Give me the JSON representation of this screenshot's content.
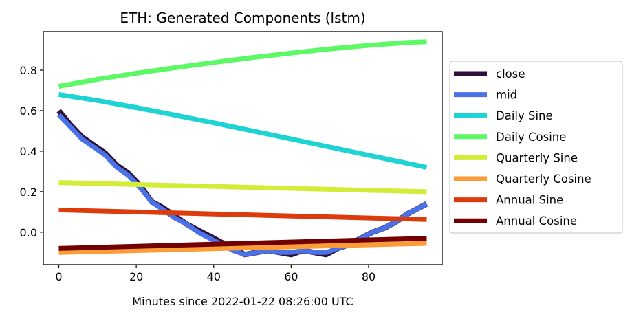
{
  "chart_data": {
    "type": "line",
    "title": "ETH: Generated Components (lstm)",
    "xlabel": "Minutes since 2022-01-22 08:26:00 UTC",
    "ylabel": "",
    "xlim": [
      -4,
      99
    ],
    "ylim": [
      -0.16,
      0.99
    ],
    "xticks": [
      0,
      20,
      40,
      60,
      80
    ],
    "yticks": [
      0.0,
      0.2,
      0.4,
      0.6,
      0.8
    ],
    "xtick_labels": [
      "0",
      "20",
      "40",
      "60",
      "80"
    ],
    "ytick_labels": [
      "0.0",
      "0.2",
      "0.4",
      "0.6",
      "0.8"
    ],
    "grid": false,
    "legend_position": "outside-right",
    "series": [
      {
        "name": "close",
        "color": "#2d0f3a",
        "x": [
          0,
          3,
          6,
          9,
          12,
          15,
          18,
          21,
          24,
          27,
          30,
          33,
          36,
          39,
          42,
          45,
          48,
          51,
          54,
          57,
          60,
          63,
          66,
          69,
          72,
          75,
          78,
          81,
          84,
          87,
          90,
          93,
          95
        ],
        "values": [
          0.6,
          0.53,
          0.47,
          0.43,
          0.39,
          0.33,
          0.29,
          0.23,
          0.15,
          0.12,
          0.08,
          0.04,
          0.01,
          -0.02,
          -0.05,
          -0.08,
          -0.11,
          -0.1,
          -0.09,
          -0.1,
          -0.11,
          -0.09,
          -0.1,
          -0.11,
          -0.08,
          -0.06,
          -0.03,
          0.0,
          0.02,
          0.05,
          0.09,
          0.12,
          0.14
        ]
      },
      {
        "name": "mid",
        "color": "#4a72e8",
        "x": [
          0,
          3,
          6,
          9,
          12,
          15,
          18,
          21,
          24,
          27,
          30,
          33,
          36,
          39,
          42,
          45,
          48,
          51,
          54,
          57,
          60,
          63,
          66,
          69,
          72,
          75,
          78,
          81,
          84,
          87,
          90,
          93,
          95
        ],
        "values": [
          0.58,
          0.52,
          0.46,
          0.42,
          0.38,
          0.32,
          0.28,
          0.22,
          0.15,
          0.11,
          0.07,
          0.04,
          0.0,
          -0.03,
          -0.06,
          -0.09,
          -0.11,
          -0.1,
          -0.09,
          -0.1,
          -0.1,
          -0.09,
          -0.1,
          -0.1,
          -0.08,
          -0.06,
          -0.03,
          0.0,
          0.02,
          0.05,
          0.09,
          0.12,
          0.14
        ]
      },
      {
        "name": "Daily Sine",
        "color": "#1dd3d3",
        "x": [
          0,
          10,
          20,
          30,
          40,
          50,
          60,
          70,
          80,
          90,
          95
        ],
        "values": [
          0.68,
          0.65,
          0.615,
          0.578,
          0.54,
          0.5,
          0.46,
          0.42,
          0.38,
          0.34,
          0.32
        ]
      },
      {
        "name": "Daily Cosine",
        "color": "#5cf866",
        "x": [
          0,
          10,
          20,
          30,
          40,
          50,
          60,
          70,
          80,
          90,
          95
        ],
        "values": [
          0.72,
          0.755,
          0.785,
          0.812,
          0.838,
          0.862,
          0.884,
          0.905,
          0.922,
          0.936,
          0.94
        ]
      },
      {
        "name": "Quarterly Sine",
        "color": "#d2ec37",
        "x": [
          0,
          95
        ],
        "values": [
          0.245,
          0.2
        ]
      },
      {
        "name": "Quarterly Cosine",
        "color": "#fb9c36",
        "x": [
          0,
          95
        ],
        "values": [
          -0.1,
          -0.055
        ]
      },
      {
        "name": "Annual Sine",
        "color": "#dc3b0c",
        "x": [
          0,
          95
        ],
        "values": [
          0.11,
          0.063
        ]
      },
      {
        "name": "Annual Cosine",
        "color": "#730000",
        "x": [
          0,
          95
        ],
        "values": [
          -0.08,
          -0.03
        ]
      }
    ]
  }
}
